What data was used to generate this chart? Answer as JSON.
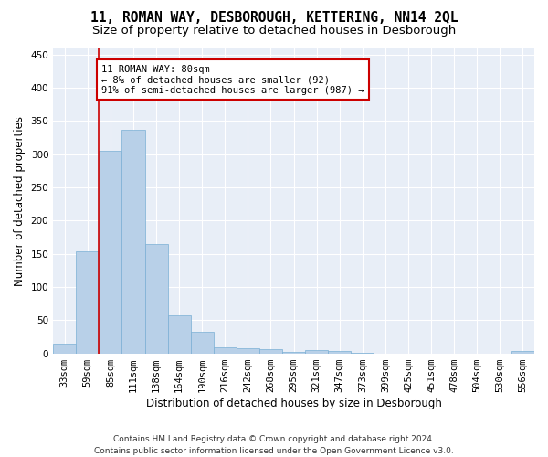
{
  "title": "11, ROMAN WAY, DESBOROUGH, KETTERING, NN14 2QL",
  "subtitle": "Size of property relative to detached houses in Desborough",
  "xlabel": "Distribution of detached houses by size in Desborough",
  "ylabel": "Number of detached properties",
  "categories": [
    "33sqm",
    "59sqm",
    "85sqm",
    "111sqm",
    "138sqm",
    "164sqm",
    "190sqm",
    "216sqm",
    "242sqm",
    "268sqm",
    "295sqm",
    "321sqm",
    "347sqm",
    "373sqm",
    "399sqm",
    "425sqm",
    "451sqm",
    "478sqm",
    "504sqm",
    "530sqm",
    "556sqm"
  ],
  "values": [
    15,
    153,
    305,
    337,
    165,
    57,
    33,
    9,
    8,
    6,
    2,
    5,
    3,
    1,
    0,
    0,
    0,
    0,
    0,
    0,
    4
  ],
  "bar_color": "#b8d0e8",
  "bar_edge_color": "#7aafd4",
  "annotation_text": "11 ROMAN WAY: 80sqm\n← 8% of detached houses are smaller (92)\n91% of semi-detached houses are larger (987) →",
  "annotation_box_facecolor": "#ffffff",
  "annotation_box_edge": "#cc0000",
  "vline_color": "#cc0000",
  "ylim": [
    0,
    460
  ],
  "yticks": [
    0,
    50,
    100,
    150,
    200,
    250,
    300,
    350,
    400,
    450
  ],
  "footer": "Contains HM Land Registry data © Crown copyright and database right 2024.\nContains public sector information licensed under the Open Government Licence v3.0.",
  "title_fontsize": 10.5,
  "subtitle_fontsize": 9.5,
  "axis_label_fontsize": 8.5,
  "tick_fontsize": 7.5,
  "annotation_fontsize": 7.5,
  "footer_fontsize": 6.5,
  "bg_color": "#ffffff",
  "plot_bg_color": "#e8eef7"
}
